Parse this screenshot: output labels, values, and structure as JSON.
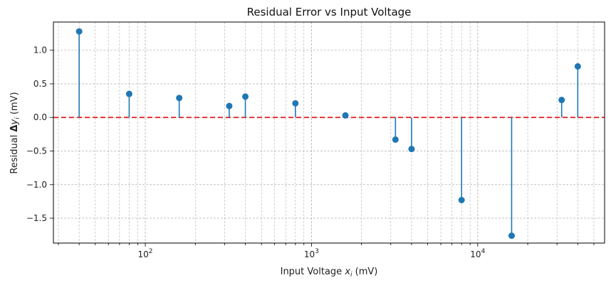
{
  "chart_data": {
    "type": "stem",
    "title": "Residual Error vs Input Voltage",
    "xlabel": "Input Voltage x_i (mV)",
    "ylabel": "Residual Δy_i (mV)",
    "xscale": "log",
    "xlim": [
      28,
      58000
    ],
    "ylim": [
      -1.87,
      1.42
    ],
    "grid": true,
    "x_ticks": [
      {
        "value": 100,
        "base": "10",
        "exp": "2"
      },
      {
        "value": 1000,
        "base": "10",
        "exp": "3"
      },
      {
        "value": 10000,
        "base": "10",
        "exp": "4"
      }
    ],
    "y_ticks": [
      {
        "value": 1.0,
        "label": "1.0"
      },
      {
        "value": 0.5,
        "label": "0.5"
      },
      {
        "value": 0.0,
        "label": "0.0"
      },
      {
        "value": -0.5,
        "label": "−0.5"
      },
      {
        "value": -1.0,
        "label": "−1.0"
      },
      {
        "value": -1.5,
        "label": "−1.5"
      }
    ],
    "reference_line": {
      "y": 0,
      "color": "#e41a1c",
      "style": "dashed"
    },
    "series": [
      {
        "color": "#1f77b4",
        "x": [
          40,
          80,
          160,
          320,
          400,
          800,
          1600,
          3200,
          4000,
          8000,
          16000,
          32000,
          40000
        ],
        "y": [
          1.28,
          0.35,
          0.29,
          0.17,
          0.31,
          0.21,
          0.03,
          -0.33,
          -0.47,
          -1.23,
          -1.76,
          0.26,
          0.76
        ]
      }
    ]
  }
}
